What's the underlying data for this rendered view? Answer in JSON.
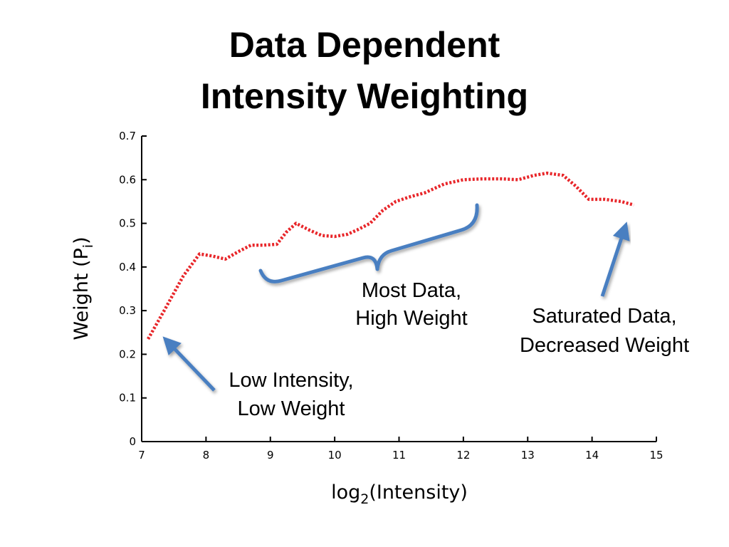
{
  "slide": {
    "title_line1": "Data Dependent",
    "title_line2": "Intensity Weighting"
  },
  "chart_data": {
    "type": "line",
    "xlabel_main": "log",
    "xlabel_sub": "2",
    "xlabel_rest": "(Intensity)",
    "ylabel_main": "Weight (P",
    "ylabel_sub": "i",
    "ylabel_rest": ")",
    "xlim": [
      7,
      15
    ],
    "ylim": [
      0,
      0.7
    ],
    "x_ticks": [
      7,
      8,
      9,
      10,
      11,
      12,
      13,
      14,
      15
    ],
    "y_ticks": [
      "0",
      "0.1",
      "0.2",
      "0.3",
      "0.4",
      "0.5",
      "0.6",
      "0.7"
    ],
    "grid": false,
    "series": [
      {
        "color": "#e8262a",
        "style": "dotted",
        "x": [
          7.1,
          7.35,
          7.65,
          7.9,
          8.1,
          8.3,
          8.5,
          8.7,
          8.9,
          9.1,
          9.25,
          9.4,
          9.6,
          9.8,
          10.0,
          10.2,
          10.35,
          10.55,
          10.75,
          10.95,
          11.15,
          11.4,
          11.7,
          12.0,
          12.3,
          12.6,
          12.85,
          13.1,
          13.3,
          13.55,
          13.75,
          13.95,
          14.2,
          14.45,
          14.65
        ],
        "y": [
          0.235,
          0.3,
          0.38,
          0.43,
          0.425,
          0.418,
          0.435,
          0.45,
          0.45,
          0.452,
          0.48,
          0.5,
          0.485,
          0.472,
          0.47,
          0.475,
          0.485,
          0.5,
          0.53,
          0.55,
          0.56,
          0.57,
          0.59,
          0.6,
          0.602,
          0.602,
          0.6,
          0.61,
          0.615,
          0.61,
          0.585,
          0.555,
          0.555,
          0.55,
          0.542
        ]
      }
    ],
    "annotations": [
      {
        "id": "low",
        "lines": [
          "Low Intensity,",
          "Low Weight"
        ],
        "color": "#4a7fc1"
      },
      {
        "id": "most",
        "lines": [
          "Most Data,",
          "High Weight"
        ],
        "color": "#4a7fc1"
      },
      {
        "id": "saturated",
        "lines": [
          "Saturated Data,",
          "Decreased Weight"
        ],
        "color": "#4a7fc1"
      }
    ]
  }
}
